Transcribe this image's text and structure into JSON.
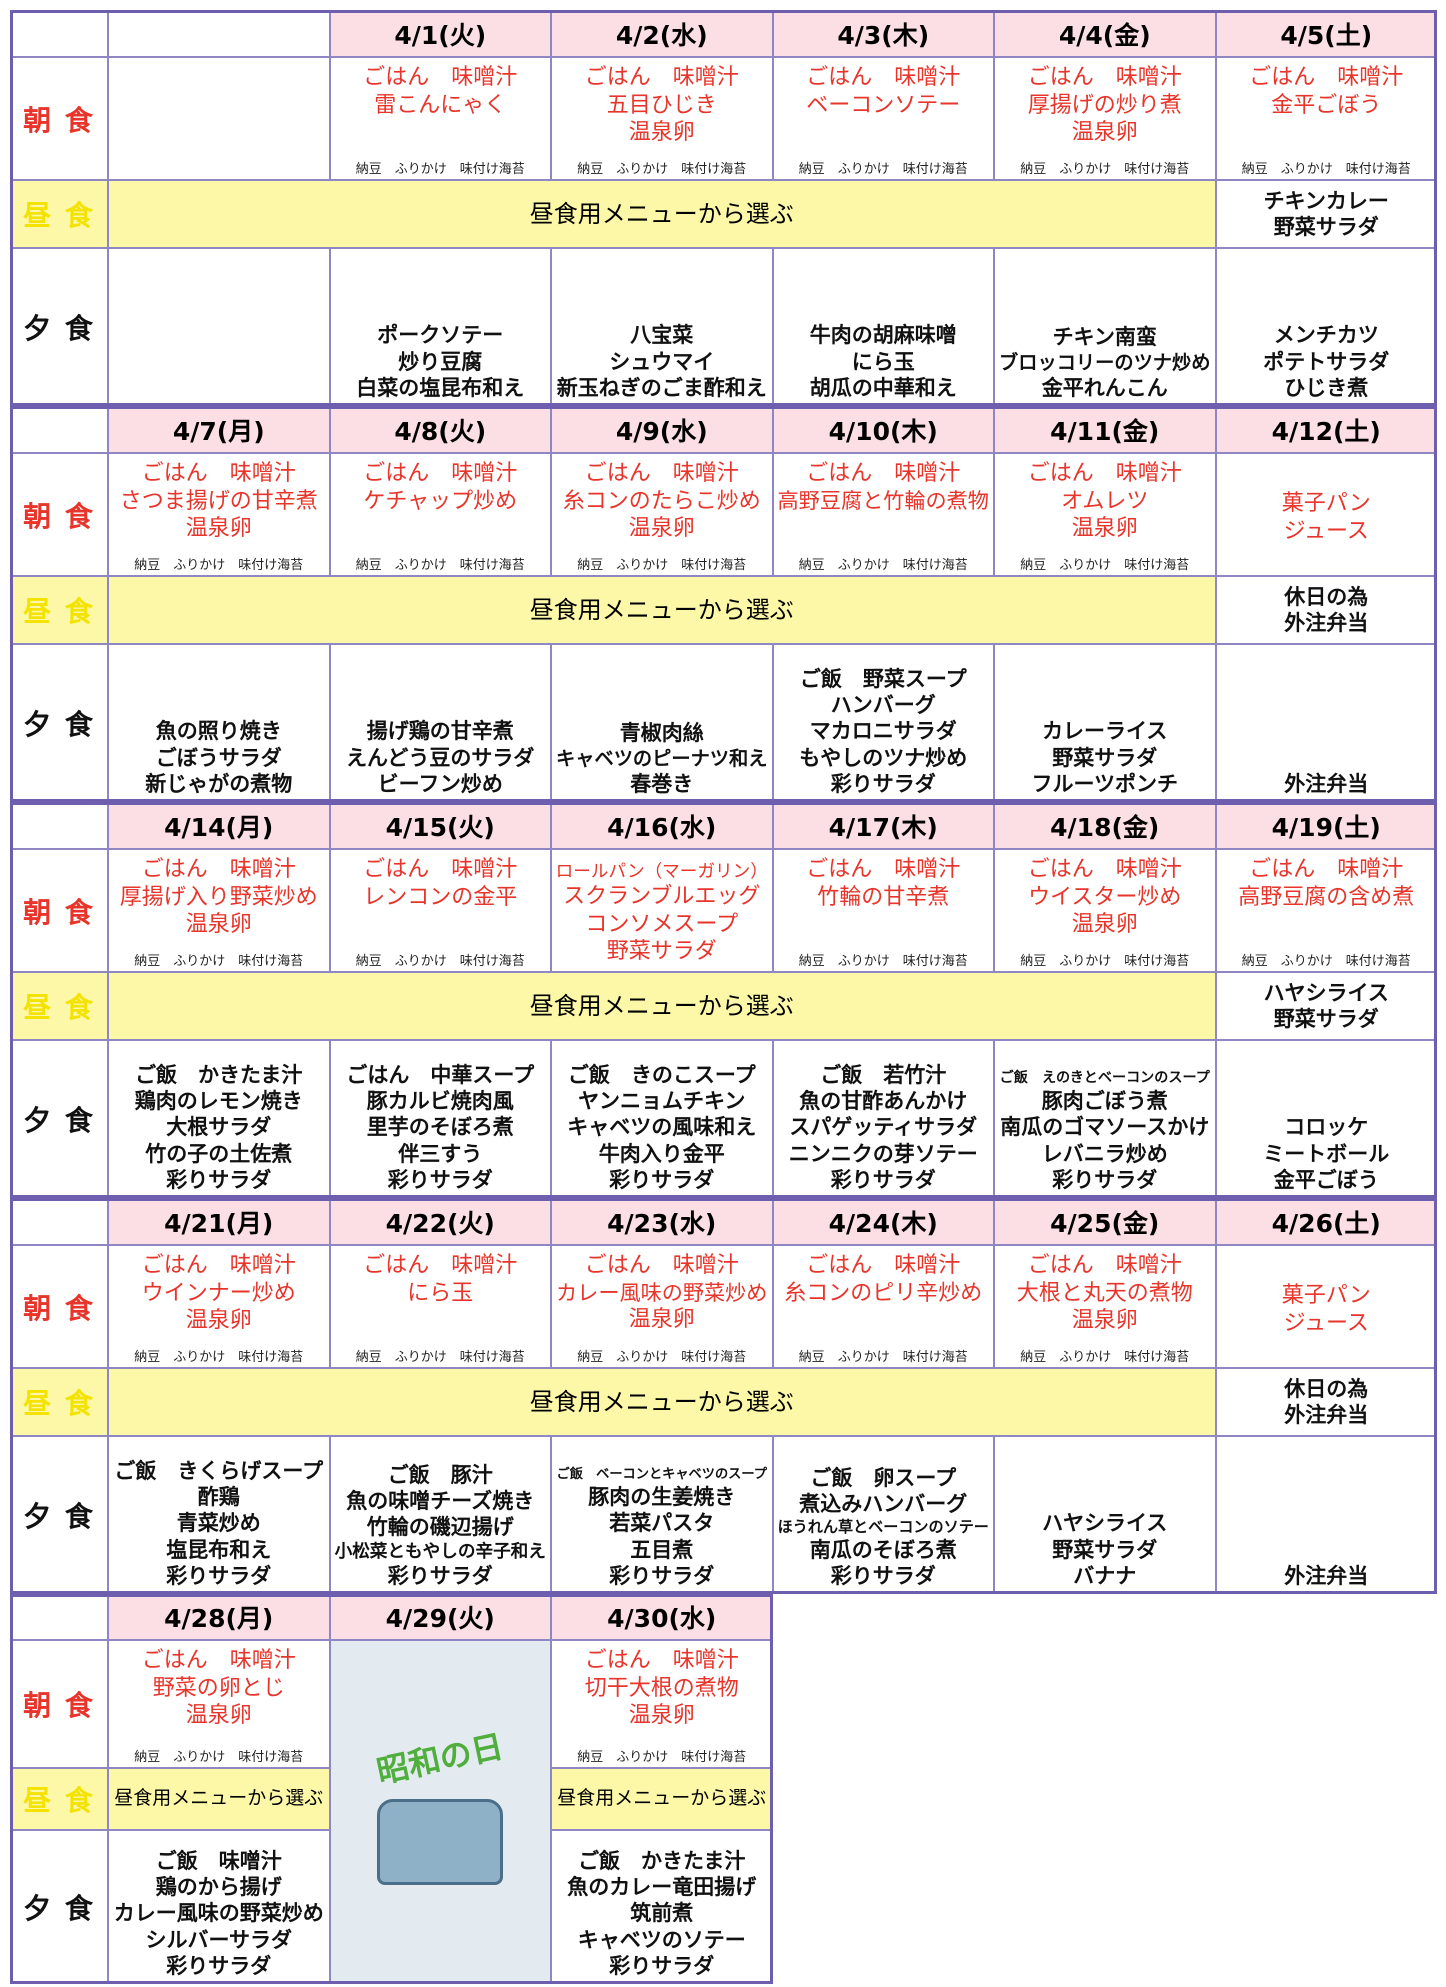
{
  "row_labels": {
    "breakfast": "朝 食",
    "lunch": "昼 食",
    "dinner": "夕 食"
  },
  "weeks": [
    {
      "lunch": "昼食用メニューから選ぶ",
      "days": [
        null,
        {
          "date": "4/1(火)",
          "breakfast": [
            "ごはん　味噌汁",
            "雷こんにゃく"
          ],
          "sides": "納豆　ふりかけ　味付け海苔",
          "dinner": [
            "ポークソテー",
            "炒り豆腐",
            "白菜の塩昆布和え"
          ]
        },
        {
          "date": "4/2(水)",
          "breakfast": [
            "ごはん　味噌汁",
            "五目ひじき",
            "温泉卵"
          ],
          "sides": "納豆　ふりかけ　味付け海苔",
          "dinner": [
            "八宝菜",
            "シュウマイ",
            "新玉ねぎのごま酢和え"
          ]
        },
        {
          "date": "4/3(木)",
          "breakfast": [
            "ごはん　味噌汁",
            "ベーコンソテー"
          ],
          "sides": "納豆　ふりかけ　味付け海苔",
          "dinner": [
            "牛肉の胡麻味噌",
            "にら玉",
            "胡瓜の中華和え"
          ]
        },
        {
          "date": "4/4(金)",
          "breakfast": [
            "ごはん　味噌汁",
            "厚揚げの炒り煮",
            "温泉卵"
          ],
          "sides": "納豆　ふりかけ　味付け海苔",
          "dinner": [
            "チキン南蛮",
            "ブロッコリーのツナ炒め",
            "金平れんこん"
          ]
        },
        {
          "date": "4/5(土)",
          "breakfast": [
            "ごはん　味噌汁",
            "金平ごぼう"
          ],
          "sides": "納豆　ふりかけ　味付け海苔",
          "lunch": [
            "チキンカレー",
            "野菜サラダ"
          ],
          "dinner": [
            "メンチカツ",
            "ポテトサラダ",
            "ひじき煮"
          ]
        }
      ]
    },
    {
      "lunch": "昼食用メニューから選ぶ",
      "days": [
        {
          "date": "4/7(月)",
          "breakfast": [
            "ごはん　味噌汁",
            "さつま揚げの甘辛煮",
            "温泉卵"
          ],
          "sides": "納豆　ふりかけ　味付け海苔",
          "dinner": [
            "魚の照り焼き",
            "ごぼうサラダ",
            "新じゃがの煮物"
          ]
        },
        {
          "date": "4/8(火)",
          "breakfast": [
            "ごはん　味噌汁",
            "ケチャップ炒め"
          ],
          "sides": "納豆　ふりかけ　味付け海苔",
          "dinner": [
            "揚げ鶏の甘辛煮",
            "えんどう豆のサラダ",
            "ビーフン炒め"
          ]
        },
        {
          "date": "4/9(水)",
          "breakfast": [
            "ごはん　味噌汁",
            "糸コンのたらこ炒め",
            "温泉卵"
          ],
          "sides": "納豆　ふりかけ　味付け海苔",
          "dinner": [
            "青椒肉絲",
            "キャベツのピーナツ和え",
            "春巻き"
          ]
        },
        {
          "date": "4/10(木)",
          "breakfast": [
            "ごはん　味噌汁",
            "高野豆腐と竹輪の煮物"
          ],
          "sides": "納豆　ふりかけ　味付け海苔",
          "dinner": [
            "ご飯　野菜スープ",
            "ハンバーグ",
            "マカロニサラダ",
            "もやしのツナ炒め",
            "彩りサラダ"
          ]
        },
        {
          "date": "4/11(金)",
          "breakfast": [
            "ごはん　味噌汁",
            "オムレツ",
            "温泉卵"
          ],
          "sides": "納豆　ふりかけ　味付け海苔",
          "dinner": [
            "カレーライス",
            "野菜サラダ",
            "フルーツポンチ"
          ]
        },
        {
          "date": "4/12(土)",
          "breakfast": [
            "菓子パン",
            "ジュース"
          ],
          "lunch": [
            "休日の為",
            "外注弁当"
          ],
          "dinner": [
            "外注弁当"
          ]
        }
      ]
    },
    {
      "lunch": "昼食用メニューから選ぶ",
      "days": [
        {
          "date": "4/14(月)",
          "breakfast": [
            "ごはん　味噌汁",
            "厚揚げ入り野菜炒め",
            "温泉卵"
          ],
          "sides": "納豆　ふりかけ　味付け海苔",
          "dinner": [
            "ご飯　かきたま汁",
            "鶏肉のレモン焼き",
            "大根サラダ",
            "竹の子の土佐煮",
            "彩りサラダ"
          ]
        },
        {
          "date": "4/15(火)",
          "breakfast": [
            "ごはん　味噌汁",
            "レンコンの金平"
          ],
          "sides": "納豆　ふりかけ　味付け海苔",
          "dinner": [
            "ごはん　中華スープ",
            "豚カルビ焼肉風",
            "里芋のそぼろ煮",
            "伴三すう",
            "彩りサラダ"
          ]
        },
        {
          "date": "4/16(水)",
          "breakfast": [
            "ロールパン（マーガリン）",
            "スクランブルエッグ",
            "コンソメスープ",
            "野菜サラダ"
          ],
          "dinner": [
            "ご飯　きのこスープ",
            "ヤンニョムチキン",
            "キャベツの風味和え",
            "牛肉入り金平",
            "彩りサラダ"
          ]
        },
        {
          "date": "4/17(木)",
          "breakfast": [
            "ごはん　味噌汁",
            "竹輪の甘辛煮"
          ],
          "sides": "納豆　ふりかけ　味付け海苔",
          "dinner": [
            "ご飯　若竹汁",
            "魚の甘酢あんかけ",
            "スパゲッティサラダ",
            "ニンニクの芽ソテー",
            "彩りサラダ"
          ]
        },
        {
          "date": "4/18(金)",
          "breakfast": [
            "ごはん　味噌汁",
            "ウイスター炒め",
            "温泉卵"
          ],
          "sides": "納豆　ふりかけ　味付け海苔",
          "dinner": [
            "ご飯　えのきとベーコンのスープ",
            "豚肉ごぼう煮",
            "南瓜のゴマソースかけ",
            "レバニラ炒め",
            "彩りサラダ"
          ]
        },
        {
          "date": "4/19(土)",
          "breakfast": [
            "ごはん　味噌汁",
            "高野豆腐の含め煮"
          ],
          "sides": "納豆　ふりかけ　味付け海苔",
          "lunch": [
            "ハヤシライス",
            "野菜サラダ"
          ],
          "dinner": [
            "コロッケ",
            "ミートボール",
            "金平ごぼう"
          ]
        }
      ]
    },
    {
      "lunch": "昼食用メニューから選ぶ",
      "days": [
        {
          "date": "4/21(月)",
          "breakfast": [
            "ごはん　味噌汁",
            "ウインナー炒め",
            "温泉卵"
          ],
          "sides": "納豆　ふりかけ　味付け海苔",
          "dinner": [
            "ご飯　きくらげスープ",
            "酢鶏",
            "青菜炒め",
            "塩昆布和え",
            "彩りサラダ"
          ]
        },
        {
          "date": "4/22(火)",
          "breakfast": [
            "ごはん　味噌汁",
            "にら玉"
          ],
          "sides": "納豆　ふりかけ　味付け海苔",
          "dinner": [
            "ご飯　豚汁",
            "魚の味噌チーズ焼き",
            "竹輪の磯辺揚げ",
            "小松菜ともやしの辛子和え",
            "彩りサラダ"
          ]
        },
        {
          "date": "4/23(水)",
          "breakfast": [
            "ごはん　味噌汁",
            "カレー風味の野菜炒め",
            "温泉卵"
          ],
          "sides": "納豆　ふりかけ　味付け海苔",
          "dinner": [
            "ご飯　ベーコンとキャベツのスープ",
            "豚肉の生姜焼き",
            "若菜パスタ",
            "五目煮",
            "彩りサラダ"
          ]
        },
        {
          "date": "4/24(木)",
          "breakfast": [
            "ごはん　味噌汁",
            "糸コンのピリ辛炒め"
          ],
          "sides": "納豆　ふりかけ　味付け海苔",
          "dinner": [
            "ご飯　卵スープ",
            "煮込みハンバーグ",
            "ほうれん草とベーコンのソテー",
            "南瓜のそぼろ煮",
            "彩りサラダ"
          ]
        },
        {
          "date": "4/25(金)",
          "breakfast": [
            "ごはん　味噌汁",
            "大根と丸天の煮物",
            "温泉卵"
          ],
          "sides": "納豆　ふりかけ　味付け海苔",
          "dinner": [
            "ハヤシライス",
            "野菜サラダ",
            "バナナ"
          ]
        },
        {
          "date": "4/26(土)",
          "breakfast": [
            "菓子パン",
            "ジュース"
          ],
          "lunch": [
            "休日の為",
            "外注弁当"
          ],
          "dinner": [
            "外注弁当"
          ]
        }
      ]
    },
    {
      "days": [
        {
          "date": "4/28(月)",
          "breakfast": [
            "ごはん　味噌汁",
            "野菜の卵とじ",
            "温泉卵"
          ],
          "sides": "納豆　ふりかけ　味付け海苔",
          "lunch": "昼食用メニューから選ぶ",
          "dinner": [
            "ご飯　味噌汁",
            "鶏のから揚げ",
            "カレー風味の野菜炒め",
            "シルバーサラダ",
            "彩りサラダ"
          ]
        },
        {
          "date": "4/29(火)",
          "holiday": "昭和の日"
        },
        {
          "date": "4/30(水)",
          "breakfast": [
            "ごはん　味噌汁",
            "切干大根の煮物",
            "温泉卵"
          ],
          "sides": "納豆　ふりかけ　味付け海苔",
          "lunch": "昼食用メニューから選ぶ",
          "dinner": [
            "ご飯　かきたま汁",
            "魚のカレー竜田揚げ",
            "筑前煮",
            "キャベツのソテー",
            "彩りサラダ"
          ]
        },
        null,
        null,
        null
      ]
    }
  ]
}
